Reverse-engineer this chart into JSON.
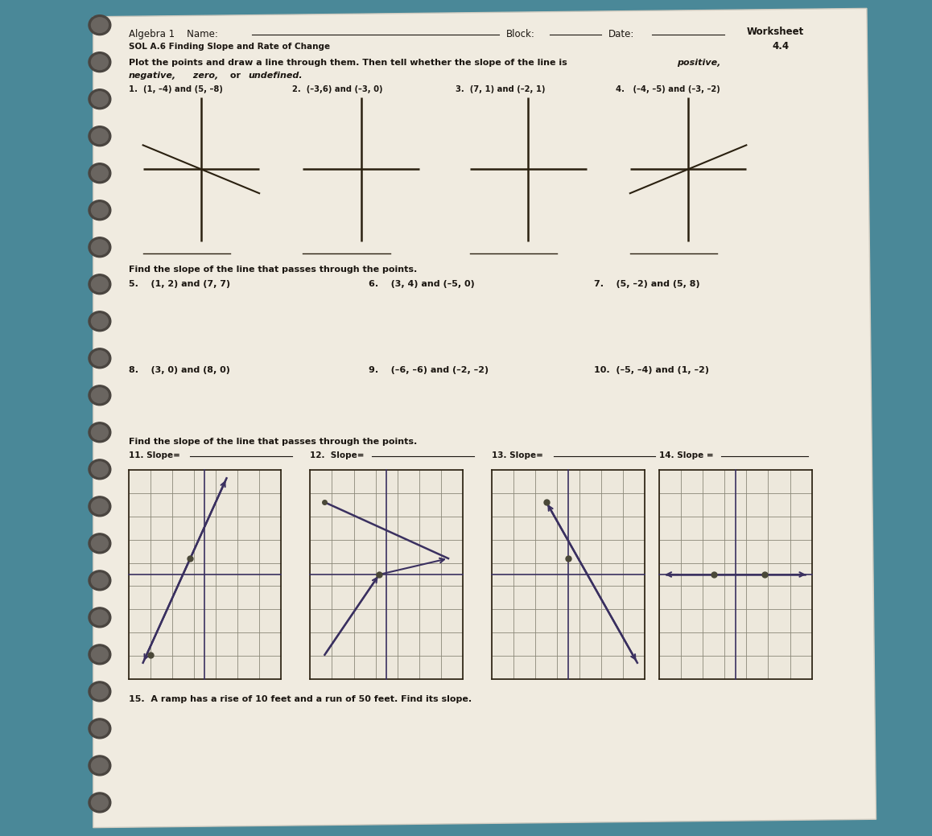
{
  "bg_color_left": "#3a6e7e",
  "bg_color_right": "#4a8e9e",
  "paper_color": "#f0ebe0",
  "shadow_color": "#d0cbc0",
  "dark_color": "#1a1510",
  "line_color": "#2a2010",
  "grid_color": "#8a8878",
  "axis_color": "#3a3828",
  "spiral_color": "#5a5550",
  "title_line1_left": "Algebra 1     Name:",
  "title_line1_mid": "Block:",
  "title_line1_right": "Date:",
  "title_worksheet": "Worksheet",
  "title_44": "4.4",
  "title_line2": "SOL A.6 Finding Slope and Rate of Change",
  "section1_line1": "Plot the points and draw a line through them. Then tell whether the slope of the line is ",
  "section1_italic": "positive,",
  "section1_line2_parts": [
    "negative,",
    " zero,",
    " or ",
    "undefined."
  ],
  "prob1": "1.  (1, –4) and (5, –8)",
  "prob2": "2.  (–3,6) and (–3, 0)",
  "prob3": "3.  (7, 1) and (–2, 1)",
  "prob4": "4.   (–4, –5) and (–3, –2)",
  "section2": "Find the slope of the line that passes through the points.",
  "prob5": "5.    (1, 2) and (7, 7)",
  "prob6": "6.    (3, 4) and (–5, 0)",
  "prob7": "7.    (5, –2) and (5, 8)",
  "prob8": "8.    (3, 0) and (8, 0)",
  "prob9": "9.    (–6, –6) and (–2, –2)",
  "prob10": "10.  (–5, –4) and (1, –2)",
  "section3": "Find the slope of the line that passes through the points.",
  "slope11": "11. Slope=",
  "slope12": "12.  Slope=",
  "slope13": "13. Slope=",
  "slope14": "14. Slope =",
  "prob15": "15.  A ramp has a rise of 10 feet and a run of 50 feet. Find its slope."
}
